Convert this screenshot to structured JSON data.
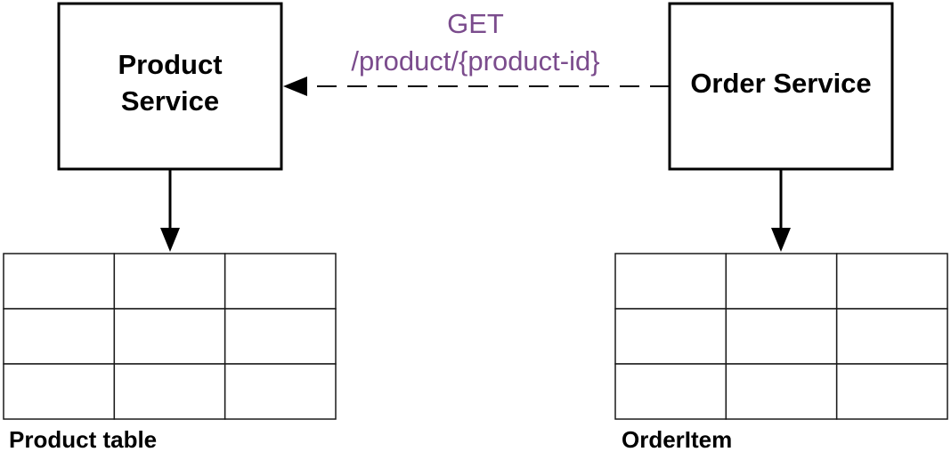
{
  "diagram": {
    "product_service": {
      "line1": "Product",
      "line2": "Service"
    },
    "order_service": {
      "label": "Order Service"
    },
    "request": {
      "method": "GET",
      "path": "/product/{product-id}",
      "color": "#7b4c8d"
    },
    "product_table": {
      "caption": "Product table",
      "rows": 3,
      "cols": 3
    },
    "order_item_table": {
      "caption": "OrderItem",
      "rows": 3,
      "cols": 3
    },
    "colors": {
      "stroke": "#000000",
      "table_stroke": "#1a1a1a",
      "background": "#ffffff"
    }
  }
}
